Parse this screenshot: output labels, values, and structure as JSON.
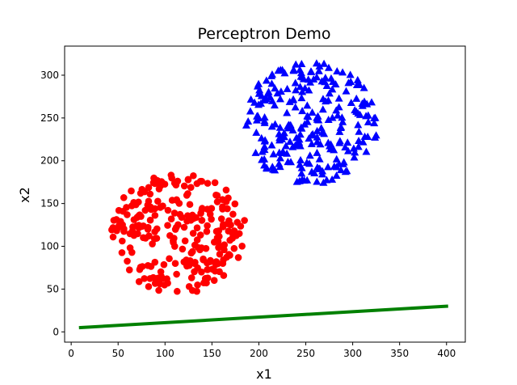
{
  "chart_data": {
    "type": "scatter",
    "title": "Perceptron Demo",
    "xlabel": "x1",
    "ylabel": "x2",
    "xlim": [
      -7,
      420
    ],
    "ylim": [
      -12,
      334
    ],
    "xticks": [
      0,
      50,
      100,
      150,
      200,
      250,
      300,
      350,
      400
    ],
    "yticks": [
      0,
      50,
      100,
      150,
      200,
      250,
      300
    ],
    "grid": false,
    "legend": null,
    "series": [
      {
        "marker": "circle",
        "color": "#ff0000",
        "cluster": {
          "center": [
            115,
            116
          ],
          "radius": 72,
          "count": 260
        }
      },
      {
        "marker": "triangle",
        "color": "#0000ff",
        "cluster": {
          "center": [
            255,
            245
          ],
          "radius": 72,
          "count": 260
        }
      },
      {
        "marker": "line",
        "color": "#008000",
        "x": [
          10,
          400
        ],
        "y": [
          5,
          30
        ]
      }
    ]
  }
}
